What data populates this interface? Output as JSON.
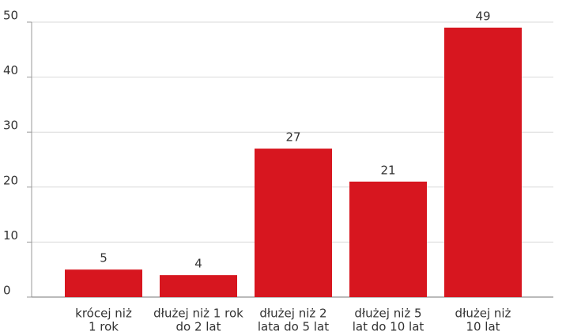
{
  "chart_data": {
    "type": "bar",
    "categories": [
      [
        "krócej niż",
        "1 rok"
      ],
      [
        "dłużej niż 1 rok",
        "do 2 lat"
      ],
      [
        "dłużej niż 2",
        "lata do 5 lat"
      ],
      [
        "dłużej niż 5",
        "lat do 10 lat"
      ],
      [
        "dłużej niż",
        "10 lat"
      ]
    ],
    "values": [
      5,
      4,
      27,
      21,
      49
    ],
    "color": "#d7161f",
    "ylim": [
      0,
      50
    ],
    "yticks": [
      0,
      10,
      20,
      30,
      40,
      50
    ],
    "grid": true
  }
}
